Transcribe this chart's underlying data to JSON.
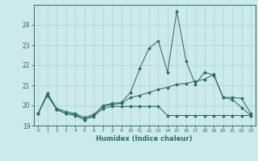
{
  "title": "",
  "xlabel": "Humidex (Indice chaleur)",
  "x": [
    0,
    1,
    2,
    3,
    4,
    5,
    6,
    7,
    8,
    9,
    10,
    11,
    12,
    13,
    14,
    15,
    16,
    17,
    18,
    19,
    20,
    21,
    22,
    23
  ],
  "line_max": [
    19.6,
    20.6,
    19.8,
    19.6,
    19.55,
    19.3,
    19.5,
    20.0,
    20.1,
    20.15,
    20.65,
    21.85,
    22.85,
    23.2,
    21.65,
    24.7,
    22.2,
    21.05,
    21.65,
    21.5,
    20.4,
    20.3,
    19.9,
    19.5
  ],
  "line_mid": [
    19.6,
    20.6,
    19.85,
    19.7,
    19.6,
    19.4,
    19.55,
    19.95,
    20.05,
    20.1,
    20.4,
    20.5,
    20.65,
    20.8,
    20.9,
    21.05,
    21.1,
    21.2,
    21.3,
    21.55,
    20.4,
    20.4,
    20.35,
    19.6
  ],
  "line_min": [
    19.6,
    20.5,
    19.8,
    19.6,
    19.5,
    19.3,
    19.45,
    19.85,
    19.95,
    19.95,
    19.95,
    19.95,
    19.95,
    19.95,
    19.5,
    19.5,
    19.5,
    19.5,
    19.5,
    19.5,
    19.5,
    19.5,
    19.5,
    19.5
  ],
  "line_color": "#2a6e6a",
  "background_color": "#cdeaea",
  "grid_color": "#b0d0d0",
  "ylim": [
    19.0,
    25.0
  ],
  "yticks": [
    19,
    20,
    21,
    22,
    23,
    24
  ],
  "xticks": [
    0,
    1,
    2,
    3,
    4,
    5,
    6,
    7,
    8,
    9,
    10,
    11,
    12,
    13,
    14,
    15,
    16,
    17,
    18,
    19,
    20,
    21,
    22,
    23
  ]
}
